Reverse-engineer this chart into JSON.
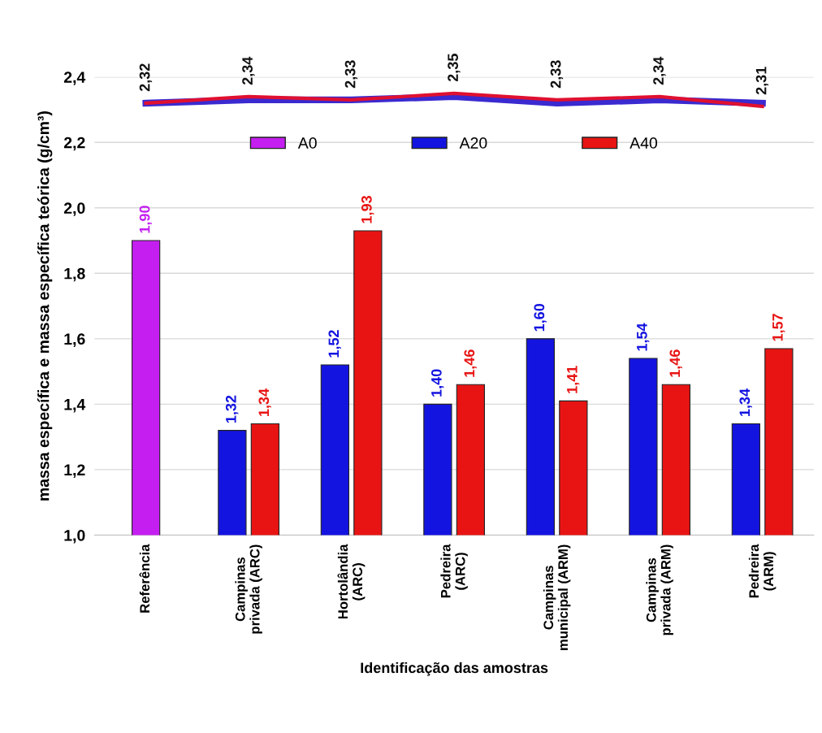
{
  "chart_data": {
    "type": "bar",
    "xlabel": "Identificação das amostras",
    "ylabel": "massa específica e massa específica teórica (g/cm³)",
    "categories": [
      "Referência",
      "Campinas\nprivada (ARC)",
      "Hortolândia\n(ARC)",
      "Pedreira\n(ARC)",
      "Campinas\nmunicipal (ARM)",
      "Campinas\nprivada (ARM)",
      "Pedreira\n(ARM)"
    ],
    "series": [
      {
        "name": "A0",
        "color": "#c41ff0",
        "values": [
          1.9,
          null,
          null,
          null,
          null,
          null,
          null
        ],
        "value_labels": [
          "1,90",
          null,
          null,
          null,
          null,
          null,
          null
        ]
      },
      {
        "name": "A20",
        "color": "#1414e0",
        "values": [
          null,
          1.32,
          1.52,
          1.4,
          1.6,
          1.54,
          1.34
        ],
        "value_labels": [
          null,
          "1,32",
          "1,52",
          "1,40",
          "1,60",
          "1,54",
          "1,34"
        ]
      },
      {
        "name": "A40",
        "color": "#e81414",
        "values": [
          null,
          1.34,
          1.93,
          1.46,
          1.41,
          1.46,
          1.57
        ],
        "value_labels": [
          null,
          "1,34",
          "1,93",
          "1,46",
          "1,41",
          "1,46",
          "1,57"
        ]
      },
      {
        "type": "line",
        "color": "#3a2ad0",
        "values": [
          2.32,
          2.33,
          2.33,
          2.34,
          2.32,
          2.33,
          2.32
        ]
      },
      {
        "type": "line",
        "color": "#e01030",
        "values": [
          2.32,
          2.34,
          2.33,
          2.35,
          2.33,
          2.34,
          2.31
        ],
        "value_labels": [
          "2,32",
          "2,34",
          "2,33",
          "2,35",
          "2,33",
          "2,34",
          "2,31"
        ]
      }
    ],
    "ylim": [
      1.0,
      2.4
    ],
    "yticks": [
      {
        "value": 1.0,
        "label": "1,0"
      },
      {
        "value": 1.2,
        "label": "1,2"
      },
      {
        "value": 1.4,
        "label": "1,4"
      },
      {
        "value": 1.6,
        "label": "1,6"
      },
      {
        "value": 1.8,
        "label": "1,8"
      },
      {
        "value": 2.0,
        "label": "2,0"
      },
      {
        "value": 2.2,
        "label": "2,2"
      },
      {
        "value": 2.4,
        "label": "2,4"
      }
    ],
    "grid": "y",
    "legend": "top"
  }
}
